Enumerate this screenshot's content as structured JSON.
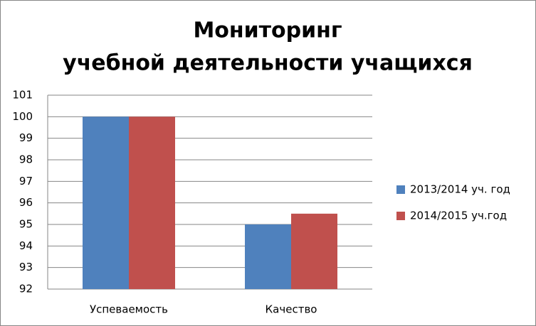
{
  "chart_data": {
    "type": "bar",
    "title": [
      "Мониторинг",
      "учебной деятельности учащихся"
    ],
    "categories": [
      "Успеваемость",
      "Качество"
    ],
    "series": [
      {
        "name": "2013/2014 уч. год",
        "color": "#4f81bd",
        "values": [
          100,
          95
        ]
      },
      {
        "name": "2014/2015 уч.год",
        "color": "#c0504d",
        "values": [
          100,
          95.5
        ]
      }
    ],
    "ylim": [
      92,
      101
    ],
    "yticks": [
      92,
      93,
      94,
      95,
      96,
      97,
      98,
      99,
      100,
      101
    ],
    "grid": true,
    "legend": "right"
  }
}
